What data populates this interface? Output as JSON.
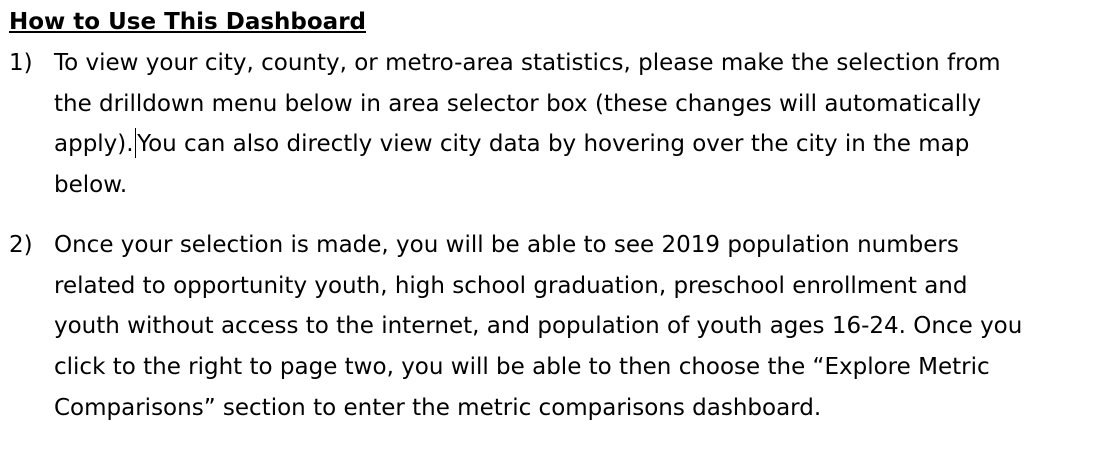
{
  "document": {
    "heading": "How to Use This Dashboard",
    "items": [
      {
        "number": "1)",
        "lines": [
          "To view your city, county, or metro-area statistics, please make the selection from",
          "the drilldown menu below in area selector box (these changes will automatically",
          "apply).",
          "You can also directly view city data by hovering over the city in the map",
          "below."
        ]
      },
      {
        "number": "2)",
        "lines": [
          "Once your selection is made, you will be able to see 2019 population numbers",
          "related to opportunity youth, high school graduation, preschool enrollment and",
          "youth without access to the internet, and population of youth ages 16-24. Once you",
          "click to the right to page two, you will be able to then choose the “Explore Metric",
          "Comparisons” section to enter the metric comparisons dashboard."
        ]
      }
    ]
  }
}
